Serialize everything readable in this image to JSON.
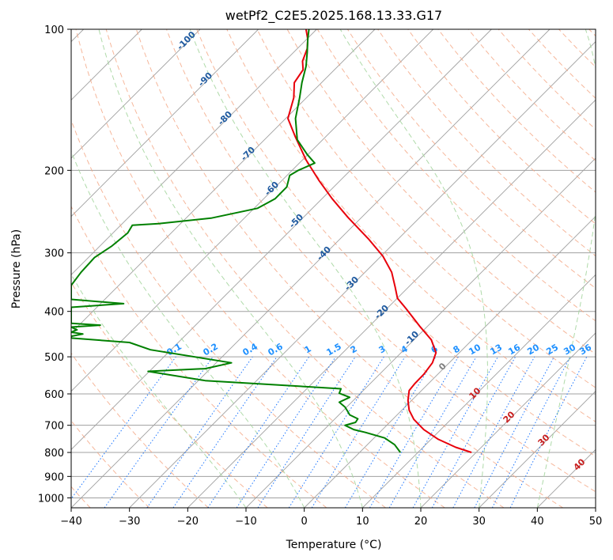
{
  "chart_data": {
    "type": "line",
    "title": "wetPf2_C2E5.2025.168.13.33.G17",
    "xlabel": "Temperature (°C)",
    "ylabel": "Pressure (hPa)",
    "xlim": [
      -40,
      50
    ],
    "ylim": [
      1050,
      100
    ],
    "y_scale": "log",
    "grid": true,
    "x_ticks": [
      "−40",
      "−30",
      "−20",
      "−10",
      "0",
      "10",
      "20",
      "30",
      "40",
      "50"
    ],
    "x_tick_values": [
      -40,
      -30,
      -20,
      -10,
      0,
      10,
      20,
      30,
      40,
      50
    ],
    "y_ticks": [
      "100",
      "200",
      "300",
      "400",
      "500",
      "600",
      "700",
      "800",
      "900",
      "1000"
    ],
    "y_tick_values": [
      100,
      200,
      300,
      400,
      500,
      600,
      700,
      800,
      900,
      1000
    ],
    "colors": {
      "temperature": "#e8000b",
      "dewpoint": "#008000",
      "isotherm": "#a0a0a0",
      "dry_adiabat": "#f4a582",
      "moist_adiabat": "#a6d6a0",
      "mixing_ratio": "#1f77ff",
      "dry_label": "#c81e1e",
      "moist_label": "#1f5aa0",
      "mixing_label": "#1e90ff",
      "zero_label": "#808080"
    },
    "series": [
      {
        "role": "temperature",
        "points": [
          [
            28.7,
            800
          ],
          [
            26.0,
            780
          ],
          [
            23.0,
            750
          ],
          [
            20.5,
            715
          ],
          [
            18.8,
            680
          ],
          [
            18.0,
            650
          ],
          [
            17.8,
            620
          ],
          [
            18.0,
            590
          ],
          [
            19.0,
            570
          ],
          [
            20.5,
            545
          ],
          [
            22.0,
            515
          ],
          [
            22.6,
            490
          ],
          [
            21.8,
            460
          ],
          [
            19.8,
            430
          ],
          [
            17.5,
            395
          ],
          [
            16.0,
            375
          ],
          [
            15.6,
            355
          ],
          [
            15.0,
            330
          ],
          [
            13.5,
            305
          ],
          [
            11.0,
            280
          ],
          [
            7.5,
            252
          ],
          [
            4.8,
            230
          ],
          [
            2.5,
            210
          ],
          [
            0.3,
            190
          ],
          [
            -1.5,
            170
          ],
          [
            -2.8,
            155
          ],
          [
            -1.8,
            140
          ],
          [
            -1.7,
            130
          ],
          [
            -0.2,
            122
          ],
          [
            -0.3,
            117
          ],
          [
            0.5,
            110
          ],
          [
            0.6,
            105
          ],
          [
            0.3,
            100
          ]
        ]
      },
      {
        "role": "dewpoint",
        "points": [
          [
            16.5,
            800
          ],
          [
            15.5,
            770
          ],
          [
            13.8,
            745
          ],
          [
            10.5,
            725
          ],
          [
            8.5,
            715
          ],
          [
            7.0,
            700
          ],
          [
            8.8,
            690
          ],
          [
            9.2,
            678
          ],
          [
            7.8,
            665
          ],
          [
            7.5,
            655
          ],
          [
            7.0,
            640
          ],
          [
            6.0,
            625
          ],
          [
            7.8,
            610
          ],
          [
            6.0,
            598
          ],
          [
            6.3,
            585
          ],
          [
            -17.0,
            562
          ],
          [
            -26.8,
            537
          ],
          [
            -17.0,
            530
          ],
          [
            -12.5,
            515
          ],
          [
            -26.4,
            483
          ],
          [
            -30.0,
            466
          ],
          [
            -40.0,
            456
          ],
          [
            -40.0,
            452
          ],
          [
            -38.0,
            447
          ],
          [
            -40.0,
            443
          ],
          [
            -39.0,
            438
          ],
          [
            -40.0,
            432
          ],
          [
            -35.0,
            428
          ],
          [
            -40.0,
            424
          ],
          [
            -40.0,
            392
          ],
          [
            -31.0,
            385
          ],
          [
            -40.0,
            377
          ],
          [
            -40.0,
            352
          ],
          [
            -38.3,
            330
          ],
          [
            -36.0,
            307
          ],
          [
            -33.0,
            290
          ],
          [
            -30.3,
            272
          ],
          [
            -29.5,
            262
          ],
          [
            -25.0,
            260
          ],
          [
            -16.0,
            253
          ],
          [
            -8.0,
            241
          ],
          [
            -5.0,
            230
          ],
          [
            -3.0,
            217
          ],
          [
            -2.5,
            205
          ],
          [
            -1.0,
            200
          ],
          [
            1.8,
            193
          ],
          [
            0.5,
            185
          ],
          [
            -1.2,
            172
          ],
          [
            -1.5,
            155
          ],
          [
            -0.8,
            140
          ],
          [
            -0.4,
            130
          ],
          [
            0.3,
            120
          ],
          [
            0.5,
            112
          ],
          [
            0.6,
            105
          ],
          [
            0.8,
            100
          ]
        ]
      }
    ],
    "dry_adiabat_labels": [
      "10",
      "20",
      "30",
      "40"
    ],
    "moist_adiabat_labels": [
      "-100",
      "-90",
      "-80",
      "-70",
      "-60",
      "-50",
      "-40",
      "-30",
      "-20",
      "-10",
      "0"
    ],
    "mixing_ratio_labels": [
      "0.1",
      "0.2",
      "0.4",
      "0.6",
      "1",
      "1.5",
      "2",
      "3",
      "4",
      "6",
      "8",
      "10",
      "13",
      "16",
      "20",
      "25",
      "30",
      "36"
    ]
  }
}
